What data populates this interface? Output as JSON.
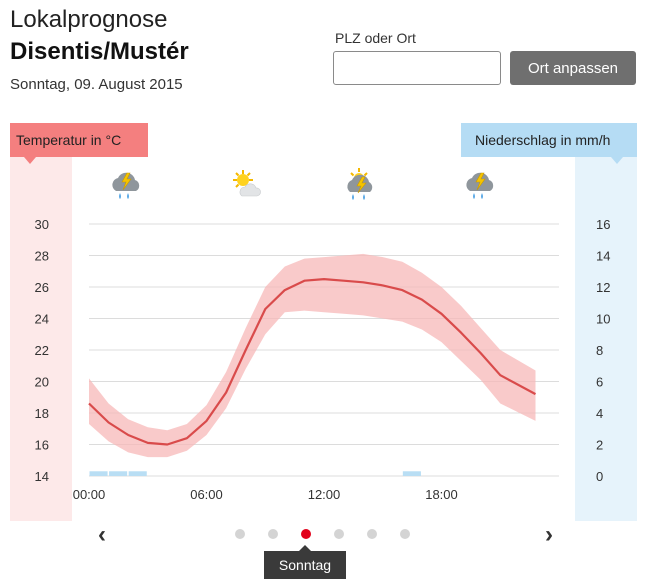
{
  "header": {
    "title": "Lokalprognose",
    "place": "Disentis/Mustér",
    "date": "Sonntag, 09. August 2015"
  },
  "search": {
    "label": "PLZ oder Ort",
    "value": "",
    "placeholder": "",
    "button_label": "Ort anpassen"
  },
  "axis_labels": {
    "left": "Temperatur in °C",
    "right": "Niederschlag in mm/h"
  },
  "weather_icons": [
    {
      "time": "03:00",
      "icon": "thunderstorm-rain-icon"
    },
    {
      "time": "09:00",
      "icon": "sun-cloud-icon"
    },
    {
      "time": "15:00",
      "icon": "sun-thunderstorm-rain-icon"
    },
    {
      "time": "21:00",
      "icon": "thunderstorm-rain-icon"
    }
  ],
  "colors": {
    "temp_line": "#d94b4b",
    "temp_band": "#f7b8b8",
    "temp_label": "#f47f7f",
    "rain_label": "#b5dcf4",
    "rain_bar": "#b9def4",
    "active_dot": "#e2001a"
  },
  "chart_data": {
    "type": "line",
    "x_ticks": [
      "00:00",
      "06:00",
      "12:00",
      "18:00"
    ],
    "x_range_hours": [
      0,
      22.8
    ],
    "y_left": {
      "label": "Temperatur in °C",
      "ticks": [
        30,
        28,
        26,
        24,
        22,
        20,
        18,
        16,
        14
      ],
      "range": [
        14,
        30
      ]
    },
    "y_right": {
      "label": "Niederschlag in mm/h",
      "ticks": [
        16,
        14,
        12,
        10,
        8,
        6,
        4,
        2,
        0
      ],
      "range": [
        0,
        16
      ]
    },
    "grid": true,
    "series": [
      {
        "type": "line",
        "unit": "°C",
        "x": [
          0,
          1,
          2,
          3,
          4,
          5,
          6,
          7,
          8,
          9,
          10,
          11,
          12,
          13,
          14,
          15,
          16,
          17,
          18,
          19,
          20,
          21,
          22.8
        ],
        "values": [
          18.6,
          17.4,
          16.6,
          16.1,
          16.0,
          16.4,
          17.5,
          19.3,
          22.0,
          24.6,
          25.8,
          26.4,
          26.5,
          26.4,
          26.3,
          26.1,
          25.8,
          25.2,
          24.3,
          23.1,
          21.8,
          20.4,
          19.2
        ],
        "band_low": [
          17.3,
          16.2,
          15.5,
          15.2,
          15.2,
          15.6,
          16.6,
          18.3,
          20.8,
          23.0,
          24.4,
          24.5,
          24.4,
          24.3,
          24.2,
          24.0,
          23.8,
          23.3,
          22.5,
          21.3,
          20.1,
          18.6,
          17.5
        ],
        "band_high": [
          20.2,
          18.6,
          17.6,
          17.1,
          16.9,
          17.3,
          18.5,
          20.6,
          23.4,
          26.0,
          27.3,
          27.8,
          27.9,
          28.0,
          28.1,
          27.9,
          27.6,
          26.9,
          26.0,
          24.8,
          23.4,
          22.0,
          20.7
        ]
      },
      {
        "type": "bar",
        "unit": "mm/h",
        "x": [
          0,
          1,
          2,
          16
        ],
        "values": [
          0.3,
          0.3,
          0.3,
          0.3
        ]
      }
    ]
  },
  "pagination": {
    "pages": 6,
    "active": 2,
    "tooltip": "Sonntag",
    "prev": "‹",
    "next": "›"
  }
}
